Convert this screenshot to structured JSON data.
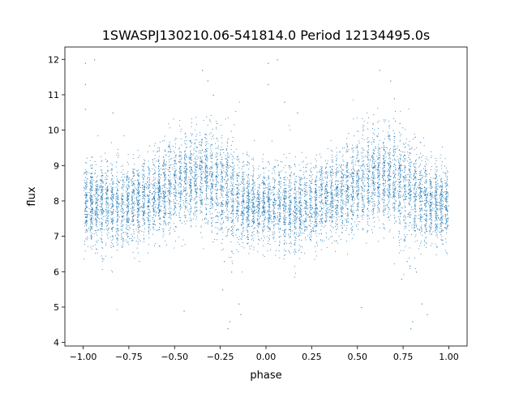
{
  "chart_data": {
    "type": "scatter",
    "title": "1SWASPJ130210.06-541814.0 Period 12134495.0s",
    "xlabel": "phase",
    "ylabel": "flux",
    "xlim": [
      -1.1,
      1.1
    ],
    "ylim": [
      3.9,
      12.35
    ],
    "x_ticks": [
      -1.0,
      -0.75,
      -0.5,
      -0.25,
      0.0,
      0.25,
      0.5,
      0.75,
      1.0
    ],
    "x_tick_labels": [
      "−1.00",
      "−0.75",
      "−0.50",
      "−0.25",
      "0.00",
      "0.25",
      "0.50",
      "0.75",
      "1.00"
    ],
    "y_ticks": [
      4,
      5,
      6,
      7,
      8,
      9,
      10,
      11,
      12
    ],
    "y_tick_labels": [
      "4",
      "5",
      "6",
      "7",
      "8",
      "9",
      "10",
      "11",
      "12"
    ],
    "grid": false,
    "legend": "none",
    "point_color": "#1f77b4",
    "phase_range": [
      -1.0,
      1.0
    ],
    "profile": [
      {
        "phase": -1.0,
        "median": 7.9,
        "spread": 0.55
      },
      {
        "phase": -0.9,
        "median": 7.9,
        "spread": 0.6
      },
      {
        "phase": -0.8,
        "median": 7.8,
        "spread": 0.6
      },
      {
        "phase": -0.7,
        "median": 8.0,
        "spread": 0.55
      },
      {
        "phase": -0.6,
        "median": 8.2,
        "spread": 0.6
      },
      {
        "phase": -0.5,
        "median": 8.5,
        "spread": 0.65
      },
      {
        "phase": -0.4,
        "median": 8.7,
        "spread": 0.6
      },
      {
        "phase": -0.3,
        "median": 8.6,
        "spread": 0.7
      },
      {
        "phase": -0.2,
        "median": 8.2,
        "spread": 0.75
      },
      {
        "phase": -0.1,
        "median": 7.9,
        "spread": 0.55
      },
      {
        "phase": 0.0,
        "median": 7.9,
        "spread": 0.55
      },
      {
        "phase": 0.1,
        "median": 7.9,
        "spread": 0.6
      },
      {
        "phase": 0.2,
        "median": 7.8,
        "spread": 0.6
      },
      {
        "phase": 0.3,
        "median": 8.0,
        "spread": 0.55
      },
      {
        "phase": 0.4,
        "median": 8.2,
        "spread": 0.6
      },
      {
        "phase": 0.5,
        "median": 8.5,
        "spread": 0.65
      },
      {
        "phase": 0.6,
        "median": 8.7,
        "spread": 0.6
      },
      {
        "phase": 0.7,
        "median": 8.6,
        "spread": 0.7
      },
      {
        "phase": 0.8,
        "median": 8.2,
        "spread": 0.75
      },
      {
        "phase": 0.9,
        "median": 7.9,
        "spread": 0.55
      },
      {
        "phase": 1.0,
        "median": 7.9,
        "spread": 0.55
      }
    ],
    "outliers": [
      {
        "x": -0.99,
        "y": 11.9
      },
      {
        "x": -0.99,
        "y": 11.3
      },
      {
        "x": -0.99,
        "y": 10.6
      },
      {
        "x": -0.94,
        "y": 12.0
      },
      {
        "x": -0.84,
        "y": 10.5
      },
      {
        "x": -0.35,
        "y": 11.7
      },
      {
        "x": -0.32,
        "y": 11.4
      },
      {
        "x": -0.31,
        "y": 10.3
      },
      {
        "x": -0.29,
        "y": 11.0
      },
      {
        "x": -0.27,
        "y": 10.2
      },
      {
        "x": -0.24,
        "y": 5.5
      },
      {
        "x": -0.23,
        "y": 6.3
      },
      {
        "x": -0.21,
        "y": 4.4
      },
      {
        "x": -0.2,
        "y": 4.6
      },
      {
        "x": -0.19,
        "y": 6.0
      },
      {
        "x": -0.15,
        "y": 5.1
      },
      {
        "x": -0.14,
        "y": 4.8
      },
      {
        "x": 0.01,
        "y": 11.9
      },
      {
        "x": 0.01,
        "y": 11.3
      },
      {
        "x": 0.06,
        "y": 12.0
      },
      {
        "x": 0.1,
        "y": 10.8
      },
      {
        "x": 0.17,
        "y": 10.5
      },
      {
        "x": 0.62,
        "y": 11.7
      },
      {
        "x": 0.65,
        "y": 10.3
      },
      {
        "x": 0.68,
        "y": 11.4
      },
      {
        "x": 0.7,
        "y": 10.9
      },
      {
        "x": 0.73,
        "y": 10.2
      },
      {
        "x": 0.74,
        "y": 5.8
      },
      {
        "x": 0.77,
        "y": 6.3
      },
      {
        "x": 0.79,
        "y": 4.4
      },
      {
        "x": 0.8,
        "y": 4.6
      },
      {
        "x": 0.82,
        "y": 6.0
      },
      {
        "x": 0.85,
        "y": 5.1
      },
      {
        "x": 0.88,
        "y": 4.8
      },
      {
        "x": 0.52,
        "y": 5.0
      },
      {
        "x": -0.45,
        "y": 4.9
      }
    ]
  }
}
